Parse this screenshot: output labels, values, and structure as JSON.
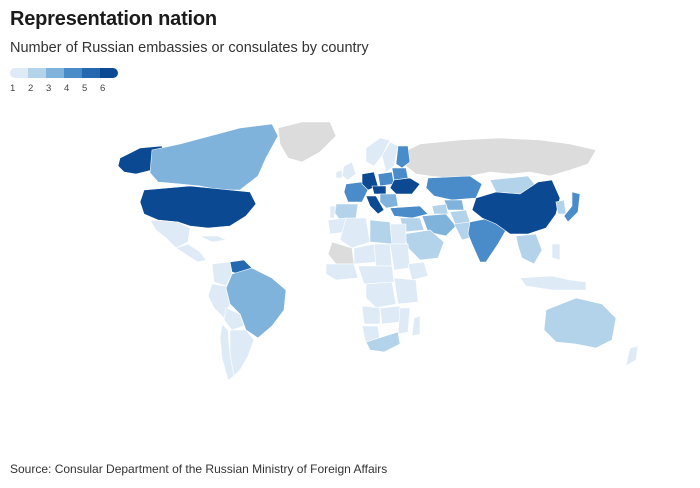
{
  "header": {
    "title": "Representation nation",
    "subtitle": "Number of Russian embassies or consulates by country"
  },
  "legend": {
    "items": [
      {
        "label": "1",
        "color": "#deebf7"
      },
      {
        "label": "2",
        "color": "#b3d3eb"
      },
      {
        "label": "3",
        "color": "#7fb3dc"
      },
      {
        "label": "4",
        "color": "#4a8cc9"
      },
      {
        "label": "5",
        "color": "#2469b0"
      },
      {
        "label": "6",
        "color": "#0b4a93"
      }
    ]
  },
  "map": {
    "no_data_color": "#dcdcdc",
    "countries": [
      {
        "name": "Alaska (United States)",
        "value": 6
      },
      {
        "name": "Canada",
        "value": 3
      },
      {
        "name": "Greenland",
        "value": null
      },
      {
        "name": "United States",
        "value": 6
      },
      {
        "name": "Mexico",
        "value": 1
      },
      {
        "name": "Central America",
        "value": 1
      },
      {
        "name": "Cuba",
        "value": 1
      },
      {
        "name": "Venezuela",
        "value": 5
      },
      {
        "name": "Colombia",
        "value": 1
      },
      {
        "name": "Peru",
        "value": 1
      },
      {
        "name": "Bolivia",
        "value": 1
      },
      {
        "name": "Brazil",
        "value": 3
      },
      {
        "name": "Chile",
        "value": 1
      },
      {
        "name": "Argentina",
        "value": 1
      },
      {
        "name": "Russia",
        "value": null
      },
      {
        "name": "Norway",
        "value": 1
      },
      {
        "name": "Sweden",
        "value": 1
      },
      {
        "name": "Finland",
        "value": 4
      },
      {
        "name": "United Kingdom",
        "value": 1
      },
      {
        "name": "Ireland",
        "value": 1
      },
      {
        "name": "France",
        "value": 4
      },
      {
        "name": "Spain",
        "value": 2
      },
      {
        "name": "Portugal",
        "value": 1
      },
      {
        "name": "Germany",
        "value": 6
      },
      {
        "name": "Poland",
        "value": 4
      },
      {
        "name": "Czechia",
        "value": 6
      },
      {
        "name": "Ukraine",
        "value": 6
      },
      {
        "name": "Belarus",
        "value": 4
      },
      {
        "name": "Italy",
        "value": 6
      },
      {
        "name": "Balkans",
        "value": 3
      },
      {
        "name": "Turkey",
        "value": 4
      },
      {
        "name": "Kazakhstan",
        "value": 4
      },
      {
        "name": "Uzbekistan",
        "value": 3
      },
      {
        "name": "Turkmenistan",
        "value": 2
      },
      {
        "name": "Iran",
        "value": 3
      },
      {
        "name": "Afghanistan",
        "value": 2
      },
      {
        "name": "Pakistan",
        "value": 2
      },
      {
        "name": "India",
        "value": 4
      },
      {
        "name": "China",
        "value": 6
      },
      {
        "name": "Mongolia",
        "value": 2
      },
      {
        "name": "Japan",
        "value": 4
      },
      {
        "name": "Korea",
        "value": 2
      },
      {
        "name": "Southeast Asia",
        "value": 2
      },
      {
        "name": "Indonesia",
        "value": 1
      },
      {
        "name": "Philippines",
        "value": 1
      },
      {
        "name": "Australia",
        "value": 2
      },
      {
        "name": "New Zealand",
        "value": 1
      },
      {
        "name": "Morocco",
        "value": 1
      },
      {
        "name": "Algeria",
        "value": 1
      },
      {
        "name": "Libya",
        "value": 2
      },
      {
        "name": "Egypt",
        "value": 1
      },
      {
        "name": "Saudi Arabia",
        "value": 2
      },
      {
        "name": "Middle East",
        "value": 2
      },
      {
        "name": "Mali",
        "value": null
      },
      {
        "name": "Niger",
        "value": 1
      },
      {
        "name": "Chad",
        "value": 1
      },
      {
        "name": "Sudan",
        "value": 1
      },
      {
        "name": "Ethiopia",
        "value": 1
      },
      {
        "name": "West Africa",
        "value": 1
      },
      {
        "name": "Central Africa",
        "value": 1
      },
      {
        "name": "DR Congo",
        "value": 1
      },
      {
        "name": "East Africa",
        "value": 1
      },
      {
        "name": "Angola",
        "value": 1
      },
      {
        "name": "Zambia",
        "value": 1
      },
      {
        "name": "Namibia",
        "value": 1
      },
      {
        "name": "South Africa",
        "value": 2
      },
      {
        "name": "Mozambique",
        "value": 1
      },
      {
        "name": "Madagascar",
        "value": 1
      }
    ]
  },
  "footer": {
    "source": "Source: Consular Department of the Russian Ministry of Foreign Affairs"
  }
}
